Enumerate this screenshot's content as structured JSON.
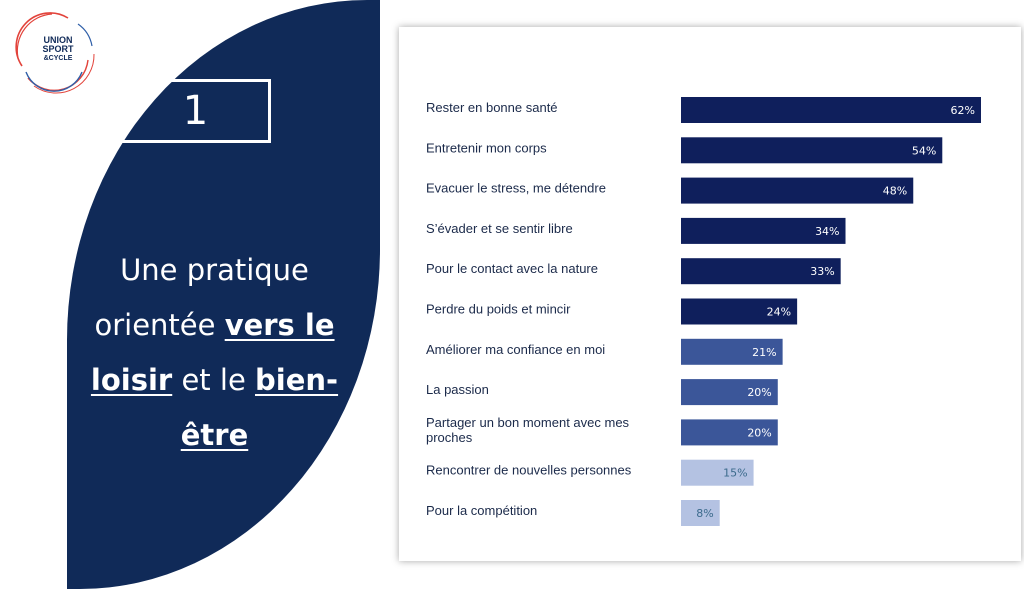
{
  "brand": {
    "logo_line1": "UNION",
    "logo_line2": "SPORT",
    "logo_line3": "&CYCLE"
  },
  "section": {
    "number": "1",
    "headline_part1": "Une pratique orientée ",
    "headline_emph1": "vers le loisir",
    "headline_part2": " et le ",
    "headline_emph2": "bien-être"
  },
  "colors": {
    "panel": "#102a58",
    "bar_dark": "#0f1f5c",
    "bar_mid": "#3b5699",
    "bar_light": "#b4c2e2",
    "label_light": "#3b6a8c"
  },
  "chart_data": {
    "type": "bar",
    "orientation": "horizontal",
    "title": "",
    "xlabel": "",
    "ylabel": "",
    "xlim": [
      0,
      62
    ],
    "grid": false,
    "legend": "none",
    "categories": [
      "Rester en bonne santé",
      "Entretenir mon corps",
      "Evacuer le stress, me détendre",
      "S’évader et se sentir libre",
      "Pour le contact avec la nature",
      "Perdre du poids et mincir",
      "Améliorer ma confiance en moi",
      "La passion",
      "Partager un bon moment avec mes proches",
      "Rencontrer de nouvelles personnes",
      "Pour la compétition"
    ],
    "values": [
      62,
      54,
      48,
      34,
      33,
      24,
      21,
      20,
      20,
      15,
      8
    ],
    "value_labels": [
      "62%",
      "54%",
      "48%",
      "34%",
      "33%",
      "24%",
      "21%",
      "20%",
      "20%",
      "15%",
      "8%"
    ],
    "tiers": [
      "dark",
      "dark",
      "dark",
      "dark",
      "dark",
      "dark",
      "mid",
      "mid",
      "mid",
      "light",
      "light"
    ]
  }
}
